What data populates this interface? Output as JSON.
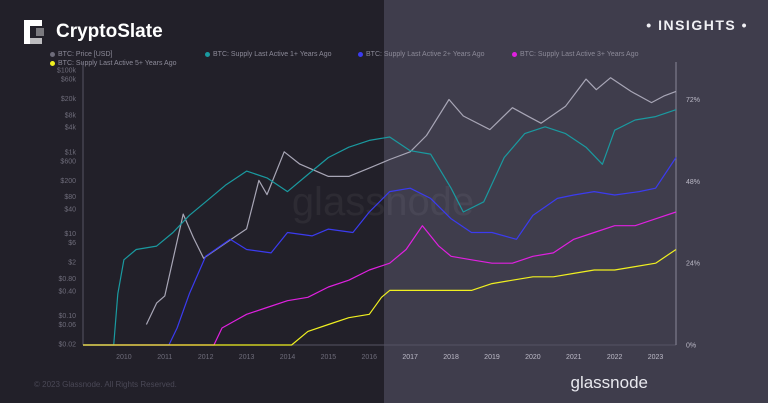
{
  "brand": {
    "name": "CryptoSlate",
    "tag": "• INSIGHTS •"
  },
  "footer": {
    "copyright": "© 2023 Glassnode. All Rights Reserved.",
    "provider_logo": "glassnode",
    "watermark": "glassnode"
  },
  "chart_data": {
    "type": "line",
    "title": "",
    "legend_placement": "top-left",
    "x_ticks": [
      "2010",
      "2011",
      "2012",
      "2013",
      "2014",
      "2015",
      "2016",
      "2017",
      "2018",
      "2019",
      "2020",
      "2021",
      "2022",
      "2023"
    ],
    "xlim": [
      2009.0,
      2023.5
    ],
    "y_left": {
      "scale": "log",
      "ticks": [
        "$100k",
        "$60k",
        "$20k",
        "$8k",
        "$4k",
        "$1k",
        "$600",
        "$200",
        "$80",
        "$40",
        "$10",
        "$6",
        "$2",
        "$0.80",
        "$0.40",
        "$0.10",
        "$0.06",
        "$0.02"
      ],
      "range": [
        0.02,
        100000
      ]
    },
    "y_right": {
      "ticks": [
        "72%",
        "48%",
        "24%",
        "0%"
      ],
      "range": [
        0,
        83
      ]
    },
    "series": [
      {
        "name": "BTC: Price [USD]",
        "axis": "left",
        "color": "#a8a6b6",
        "x": [
          2010.55,
          2010.8,
          2011.0,
          2011.45,
          2011.7,
          2011.95,
          2012.5,
          2013.0,
          2013.3,
          2013.5,
          2013.92,
          2014.3,
          2015.0,
          2015.5,
          2016.0,
          2016.5,
          2017.0,
          2017.4,
          2017.95,
          2018.3,
          2018.95,
          2019.5,
          2019.9,
          2020.2,
          2020.8,
          2021.3,
          2021.55,
          2021.9,
          2022.4,
          2022.9,
          2023.2,
          2023.5
        ],
        "y": [
          0.06,
          0.2,
          0.3,
          30,
          8,
          2.5,
          6,
          13,
          200,
          90,
          1000,
          500,
          250,
          250,
          400,
          650,
          1000,
          2500,
          19000,
          7500,
          3500,
          12000,
          7200,
          5000,
          13000,
          60000,
          33000,
          65000,
          30000,
          16000,
          23000,
          30000
        ]
      },
      {
        "name": "BTC: Supply Last Active 1+ Years Ago",
        "axis": "right",
        "color": "#1a9aa0",
        "x": [
          2009.75,
          2009.85,
          2010.0,
          2010.3,
          2010.8,
          2011.2,
          2011.6,
          2012.0,
          2012.5,
          2013.0,
          2013.5,
          2014.0,
          2014.5,
          2015.0,
          2015.5,
          2016.0,
          2016.5,
          2017.0,
          2017.5,
          2018.0,
          2018.3,
          2018.8,
          2019.3,
          2019.8,
          2020.3,
          2020.8,
          2021.3,
          2021.7,
          2022.0,
          2022.5,
          2023.0,
          2023.5
        ],
        "y": [
          0,
          15,
          25,
          28,
          29,
          33,
          38,
          42,
          47,
          51,
          49,
          45,
          50,
          55,
          58,
          60,
          61,
          57,
          56,
          46,
          39,
          42,
          55,
          62,
          64,
          62,
          58,
          53,
          63,
          66,
          67,
          69
        ]
      },
      {
        "name": "BTC: Supply Last Active 2+ Years Ago",
        "axis": "right",
        "color": "#3b3bf0",
        "x": [
          2011.1,
          2011.3,
          2011.6,
          2012.0,
          2012.6,
          2013.0,
          2013.6,
          2014.0,
          2014.6,
          2015.0,
          2015.6,
          2016.0,
          2016.5,
          2017.0,
          2017.5,
          2018.0,
          2018.5,
          2019.0,
          2019.6,
          2020.0,
          2020.6,
          2021.0,
          2021.5,
          2022.0,
          2022.6,
          2023.0,
          2023.5
        ],
        "y": [
          0,
          5,
          15,
          26,
          31,
          28,
          27,
          33,
          32,
          34,
          33,
          39,
          45,
          46,
          43,
          37,
          33,
          33,
          31,
          38,
          43,
          44,
          45,
          44,
          45,
          46,
          55
        ]
      },
      {
        "name": "BTC: Supply Last Active 3+ Years Ago",
        "axis": "right",
        "color": "#e020e0",
        "x": [
          2012.2,
          2012.4,
          2012.7,
          2013.0,
          2013.5,
          2014.0,
          2014.5,
          2015.0,
          2015.5,
          2016.0,
          2016.5,
          2016.9,
          2017.3,
          2017.7,
          2018.0,
          2018.5,
          2019.0,
          2019.5,
          2020.0,
          2020.5,
          2021.0,
          2021.5,
          2022.0,
          2022.5,
          2023.0,
          2023.5
        ],
        "y": [
          0,
          5,
          7,
          9,
          11,
          13,
          14,
          17,
          19,
          22,
          24,
          28,
          35,
          29,
          26,
          25,
          24,
          24,
          26,
          27,
          31,
          33,
          35,
          35,
          37,
          39
        ]
      },
      {
        "name": "BTC: Supply Last Active 5+ Years Ago",
        "axis": "right",
        "color": "#f0f020",
        "x": [
          2014.1,
          2014.5,
          2015.0,
          2015.5,
          2016.0,
          2016.3,
          2016.5,
          2017.0,
          2017.5,
          2018.0,
          2018.5,
          2019.0,
          2019.5,
          2020.0,
          2020.5,
          2021.0,
          2021.5,
          2022.0,
          2022.5,
          2023.0,
          2023.5
        ],
        "y": [
          0,
          4,
          6,
          8,
          9,
          14,
          16,
          16,
          16,
          16,
          16,
          18,
          19,
          20,
          20,
          21,
          22,
          22,
          23,
          24,
          28
        ]
      }
    ]
  }
}
